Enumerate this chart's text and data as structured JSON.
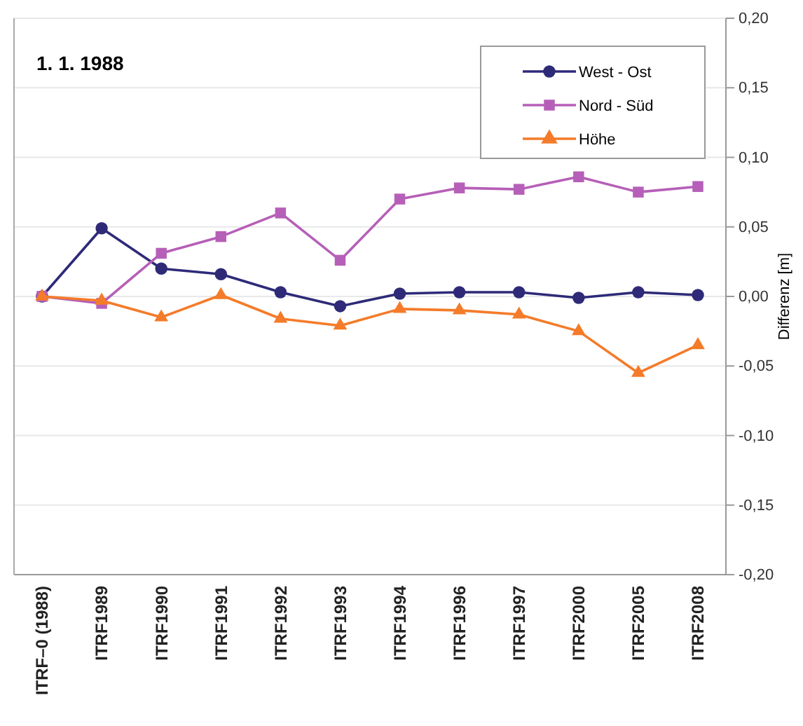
{
  "chart_data": {
    "type": "line",
    "title": "1. 1. 1988",
    "ylabel": "Differenz [m]",
    "categories": [
      "ITRF–0 (1988)",
      "ITRF1989",
      "ITRF1990",
      "ITRF1991",
      "ITRF1992",
      "ITRF1993",
      "ITRF1994",
      "ITRF1996",
      "ITRF1997",
      "ITRF2000",
      "ITRF2005",
      "ITRF2008"
    ],
    "series": [
      {
        "name": "West - Ost",
        "color": "#2e2a78",
        "marker": "circle",
        "values": [
          0,
          0.049,
          0.02,
          0.016,
          0.003,
          -0.007,
          0.002,
          0.003,
          0.003,
          -0.001,
          0.003,
          0.001
        ]
      },
      {
        "name": "Nord - Süd",
        "color": "#b65fb8",
        "marker": "square",
        "values": [
          0,
          -0.005,
          0.031,
          0.043,
          0.06,
          0.026,
          0.07,
          0.078,
          0.077,
          0.086,
          0.075,
          0.079
        ]
      },
      {
        "name": "Höhe",
        "color": "#f47b29",
        "marker": "triangle",
        "values": [
          0,
          -0.003,
          -0.015,
          0.001,
          -0.016,
          -0.021,
          -0.009,
          -0.01,
          -0.013,
          -0.025,
          -0.055,
          -0.035
        ]
      }
    ],
    "ylim": [
      -0.2,
      0.2
    ],
    "yticks": [
      {
        "value": -0.2,
        "label": "-0,20"
      },
      {
        "value": -0.15,
        "label": "-0,15"
      },
      {
        "value": -0.1,
        "label": "-0,10"
      },
      {
        "value": -0.05,
        "label": "-0,05"
      },
      {
        "value": 0,
        "label": "0,00"
      },
      {
        "value": 0.05,
        "label": "0,05"
      },
      {
        "value": 0.1,
        "label": "0,10"
      },
      {
        "value": 0.15,
        "label": "0,15"
      },
      {
        "value": 0.2,
        "label": "0,20"
      }
    ],
    "grid": "y",
    "legend": "top right",
    "line_style": "solid"
  }
}
